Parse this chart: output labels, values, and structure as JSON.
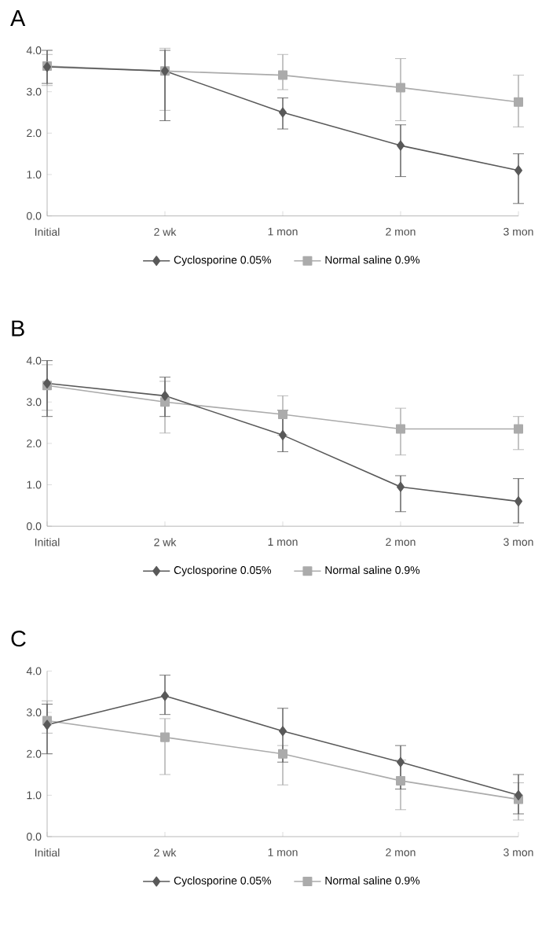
{
  "chart_data": [
    {
      "type": "line",
      "title": "A",
      "categories": [
        "Initial",
        "2 wk",
        "1 mon",
        "2 mon",
        "3 mon"
      ],
      "ylim": [
        0,
        4
      ],
      "yticks": [
        {
          "value": 0,
          "label": "0.0"
        },
        {
          "value": 1,
          "label": "1.0"
        },
        {
          "value": 2,
          "label": "2.0"
        },
        {
          "value": 3,
          "label": "3.0"
        },
        {
          "value": 4,
          "label": "4.0"
        }
      ],
      "grid": false,
      "legend": "bottom",
      "series": [
        {
          "name": "Cyclosporine 0.05%",
          "color": "#595959",
          "marker": "diamond",
          "values": [
            3.6,
            3.5,
            2.5,
            1.7,
            1.1
          ],
          "errors": [
            [
              3.2,
              4.0
            ],
            [
              2.3,
              4.0
            ],
            [
              2.1,
              2.85
            ],
            [
              0.95,
              2.2
            ],
            [
              0.3,
              1.5
            ]
          ]
        },
        {
          "name": "Normal saline 0.9%",
          "color": "#ababab",
          "marker": "square",
          "values": [
            3.62,
            3.5,
            3.4,
            3.1,
            2.75
          ],
          "errors": [
            [
              3.15,
              3.9
            ],
            [
              2.55,
              4.05
            ],
            [
              3.05,
              3.9
            ],
            [
              2.3,
              3.8
            ],
            [
              2.15,
              3.4
            ]
          ]
        }
      ]
    },
    {
      "type": "line",
      "title": "B",
      "categories": [
        "Initial",
        "2 wk",
        "1 mon",
        "2 mon",
        "3 mon"
      ],
      "ylim": [
        0,
        4
      ],
      "yticks": [
        {
          "value": 0,
          "label": "0.0"
        },
        {
          "value": 1,
          "label": "1.0"
        },
        {
          "value": 2,
          "label": "2.0"
        },
        {
          "value": 3,
          "label": "3.0"
        },
        {
          "value": 4,
          "label": "4.0"
        }
      ],
      "grid": false,
      "legend": "bottom",
      "series": [
        {
          "name": "Cyclosporine 0.05%",
          "color": "#595959",
          "marker": "diamond",
          "values": [
            3.45,
            3.15,
            2.2,
            0.95,
            0.6
          ],
          "errors": [
            [
              2.65,
              4.0
            ],
            [
              2.65,
              3.6
            ],
            [
              1.8,
              2.8
            ],
            [
              0.35,
              1.22
            ],
            [
              0.08,
              1.15
            ]
          ]
        },
        {
          "name": "Normal saline 0.9%",
          "color": "#ababab",
          "marker": "square",
          "values": [
            3.4,
            3.0,
            2.7,
            2.35,
            2.35
          ],
          "errors": [
            [
              2.8,
              3.9
            ],
            [
              2.25,
              3.5
            ],
            [
              2.2,
              3.15
            ],
            [
              1.72,
              2.85
            ],
            [
              1.85,
              2.65
            ]
          ]
        }
      ]
    },
    {
      "type": "line",
      "title": "C",
      "categories": [
        "Initial",
        "2 wk",
        "1 mon",
        "2 mon",
        "3 mon"
      ],
      "ylim": [
        0,
        4
      ],
      "yticks": [
        {
          "value": 0,
          "label": "0.0"
        },
        {
          "value": 1,
          "label": "1.0"
        },
        {
          "value": 2,
          "label": "2.0"
        },
        {
          "value": 3,
          "label": "3.0"
        },
        {
          "value": 4,
          "label": "4.0"
        }
      ],
      "grid": false,
      "legend": "bottom",
      "series": [
        {
          "name": "Cyclosporine 0.05%",
          "color": "#595959",
          "marker": "diamond",
          "values": [
            2.7,
            3.4,
            2.55,
            1.8,
            1.0
          ],
          "errors": [
            [
              2.0,
              3.2
            ],
            [
              2.95,
              3.9
            ],
            [
              1.8,
              3.1
            ],
            [
              1.15,
              2.2
            ],
            [
              0.55,
              1.5
            ]
          ]
        },
        {
          "name": "Normal saline 0.9%",
          "color": "#ababab",
          "marker": "square",
          "values": [
            2.8,
            2.4,
            2.0,
            1.35,
            0.9
          ],
          "errors": [
            [
              2.5,
              3.28
            ],
            [
              1.5,
              2.85
            ],
            [
              1.25,
              2.2
            ],
            [
              0.65,
              1.85
            ],
            [
              0.4,
              1.3
            ]
          ]
        }
      ]
    }
  ]
}
